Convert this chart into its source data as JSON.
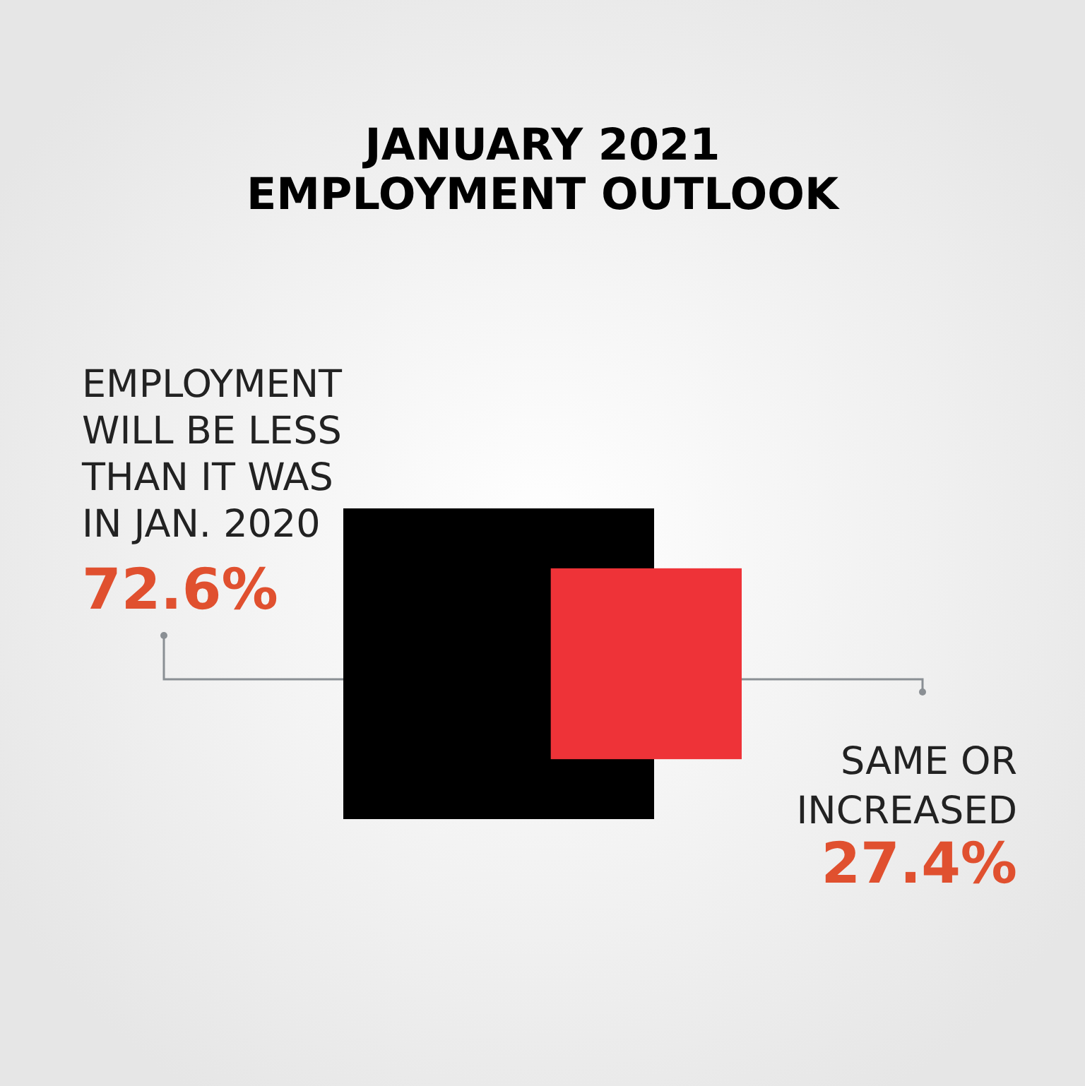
{
  "chart_data": {
    "type": "other",
    "title": "JANUARY 2021\nEMPLOYMENT OUTLOOK",
    "categories": [
      "EMPLOYMENT\nWILL BE LESS\nTHAN IT WAS\nIN JAN. 2020",
      "SAME OR\nINCREASED"
    ],
    "values": [
      72.6,
      27.4
    ],
    "colors": [
      "#000000",
      "#ee3338"
    ],
    "value_labels": [
      "72.6%",
      "27.4%"
    ]
  }
}
